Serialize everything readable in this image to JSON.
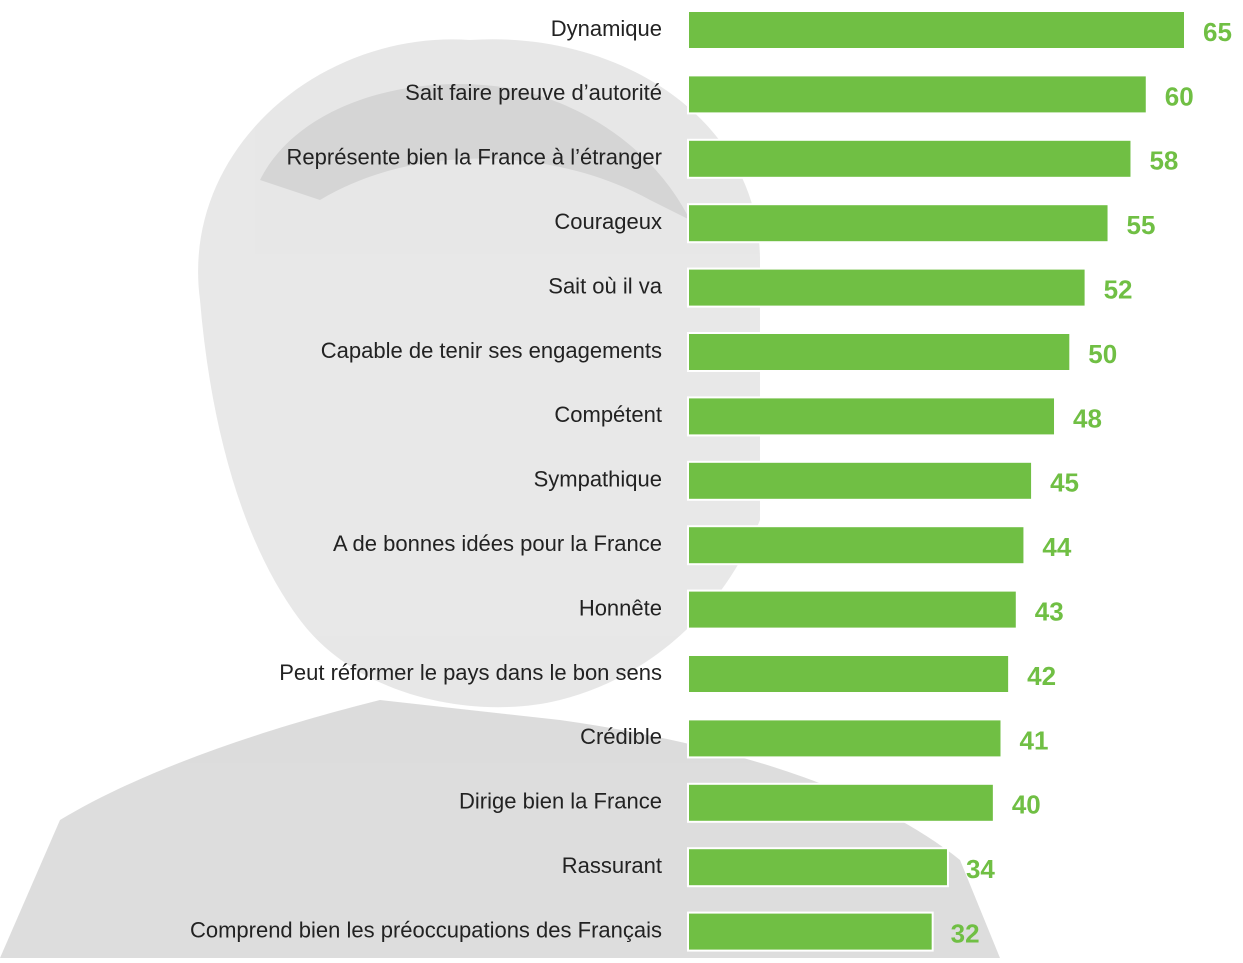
{
  "chart_data": {
    "type": "bar",
    "orientation": "horizontal",
    "color": "#70bf44",
    "categories": [
      "Dynamique",
      "Sait faire preuve d’autorité",
      "Représente bien la France à l’étranger",
      "Courageux",
      "Sait où il va",
      "Capable de tenir ses engagements",
      "Compétent",
      "Sympathique",
      "A de bonnes idées pour la France",
      "Honnête",
      "Peut réformer le pays dans le bon sens",
      "Crédible",
      "Dirige bien la France",
      "Rassurant",
      "Comprend bien les préoccupations des Français"
    ],
    "values": [
      65,
      60,
      58,
      55,
      52,
      50,
      48,
      45,
      44,
      43,
      42,
      41,
      40,
      34,
      32
    ],
    "xlim": [
      0,
      65
    ]
  }
}
